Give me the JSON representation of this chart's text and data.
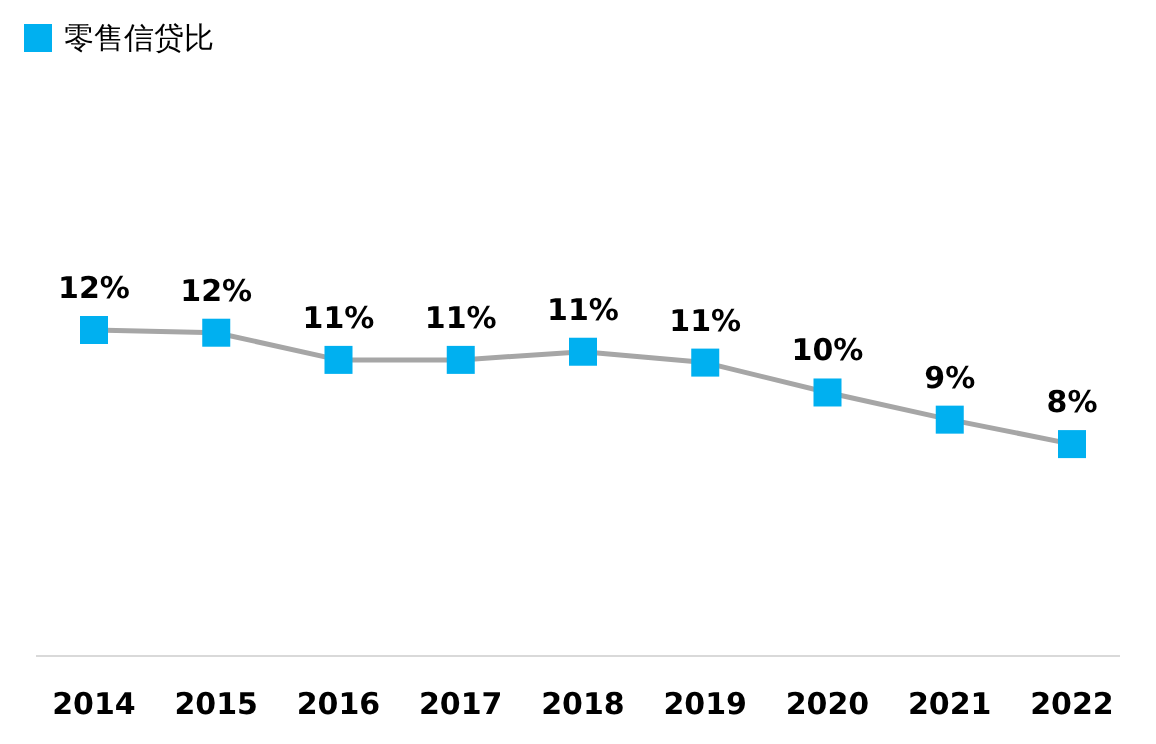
{
  "chart_data": {
    "type": "line",
    "categories": [
      "2014",
      "2015",
      "2016",
      "2017",
      "2018",
      "2019",
      "2020",
      "2021",
      "2022"
    ],
    "series": [
      {
        "name": "零售信贷比",
        "color": "#00b0f0",
        "values": [
          12,
          11.9,
          10.9,
          10.9,
          11.2,
          10.8,
          9.7,
          8.7,
          7.8
        ],
        "value_labels": [
          "12%",
          "12%",
          "11%",
          "11%",
          "11%",
          "11%",
          "10%",
          "9%",
          "8%"
        ]
      }
    ],
    "legend": "top left",
    "marker": "square",
    "line_style": "solid",
    "grid": false
  }
}
